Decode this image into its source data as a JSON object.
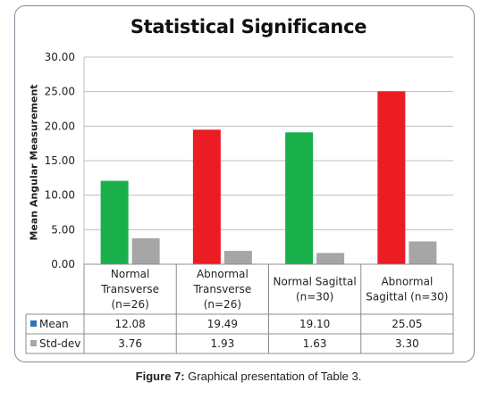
{
  "chart_data": {
    "type": "bar",
    "title": "Statistical Significance",
    "ylabel": "Mean Angular Measurement",
    "xlabel": "",
    "ylim": [
      0,
      30
    ],
    "yticks": [
      "0.00",
      "5.00",
      "10.00",
      "15.00",
      "20.00",
      "25.00",
      "30.00"
    ],
    "grid": true,
    "legend": "embedded data table",
    "categories": [
      [
        "Normal",
        "Transverse",
        "(n=26)"
      ],
      [
        "Abnormal",
        "Transverse",
        "(n=26)"
      ],
      [
        "Normal Sagittal",
        "(n=30)"
      ],
      [
        "Abnormal",
        "Sagittal (n=30)"
      ]
    ],
    "series": [
      {
        "name": "Mean",
        "values": [
          12.08,
          19.49,
          19.1,
          25.05
        ],
        "labels": [
          "12.08",
          "19.49",
          "19.10",
          "25.05"
        ],
        "point_colors": [
          "#19b04b",
          "#ec1c24",
          "#19b04b",
          "#ec1c24"
        ],
        "legend_color": "#2e75b6"
      },
      {
        "name": "Std-dev",
        "values": [
          3.76,
          1.93,
          1.63,
          3.3
        ],
        "labels": [
          "3.76",
          "1.93",
          "1.63",
          "3.30"
        ],
        "point_colors": [
          "#a6a6a6",
          "#a6a6a6",
          "#a6a6a6",
          "#a6a6a6"
        ],
        "legend_color": "#a6a6a6"
      }
    ]
  },
  "caption": {
    "label": "Figure 7:",
    "text": " Graphical presentation of Table 3."
  }
}
